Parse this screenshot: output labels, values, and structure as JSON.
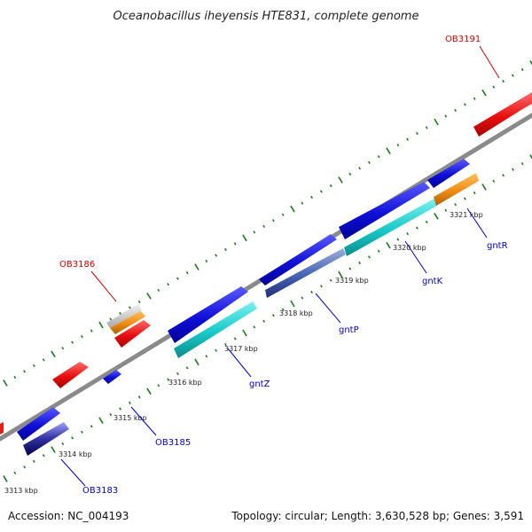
{
  "title": "Oceanobacillus iheyensis HTE831, complete genome",
  "footer": {
    "accession": "Accession: NC_004193",
    "topology": "Topology: circular; Length: 3,630,528 bp; Genes: 3,591"
  },
  "colors": {
    "backbone": "#8a8a8a",
    "ticks": "#1a7a1a",
    "cds_forward": "#1f1fe0",
    "cds_reverse": "#1fd0d0",
    "red_feature": "#e81a1a",
    "orange_feature": "#f08c14",
    "gray_feature": "#c8c8c8",
    "label_red": "#d40000",
    "label_blue": "#0000cc"
  },
  "kbp_labels": [
    "3313 kbp",
    "3314 kbp",
    "3315 kbp",
    "3316 kbp",
    "3317 kbp",
    "3318 kbp",
    "3319 kbp",
    "3320 kbp",
    "3321 kbp"
  ],
  "gene_labels": [
    {
      "text": "OB3191",
      "color": "red"
    },
    {
      "text": "OB3186",
      "color": "red"
    },
    {
      "text": "gntR",
      "color": "blue"
    },
    {
      "text": "gntK",
      "color": "blue"
    },
    {
      "text": "gntP",
      "color": "blue"
    },
    {
      "text": "gntZ",
      "color": "blue"
    },
    {
      "text": "OB3185",
      "color": "blue"
    },
    {
      "text": "OB3183",
      "color": "blue"
    }
  ]
}
